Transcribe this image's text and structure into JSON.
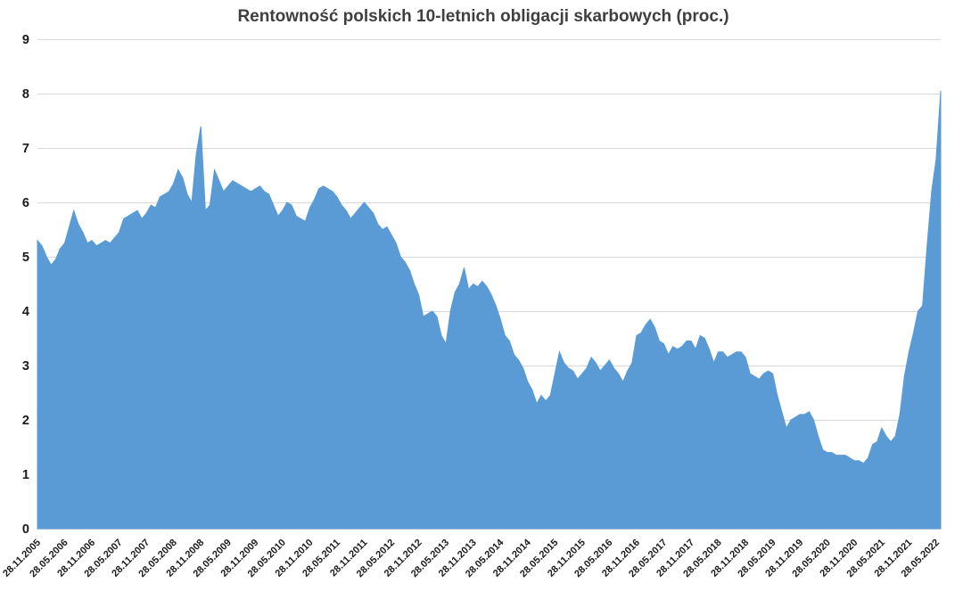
{
  "title": "Rentowność polskich 10-letnich obligacji skarbowych (proc.)",
  "colors": {
    "area": "#5b9bd5",
    "grid": "#d9d9d9",
    "title": "#3f3f3f",
    "tick_label": "#1a1a1a",
    "background": "#ffffff"
  },
  "chart_data": {
    "type": "area",
    "title": "Rentowność polskich 10-letnich obligacji skarbowych (proc.)",
    "xlabel": "",
    "ylabel": "",
    "ylim": [
      0,
      9
    ],
    "y_ticks": [
      0,
      1,
      2,
      3,
      4,
      5,
      6,
      7,
      8,
      9
    ],
    "grid": true,
    "legend": false,
    "x_start": "28.11.2005",
    "x_step_months": 1,
    "x_tick_every": 6,
    "x_tick_labels": [
      "28.11.2005",
      "28.05.2006",
      "28.11.2006",
      "28.05.2007",
      "28.11.2007",
      "28.05.2008",
      "28.11.2008",
      "28.05.2009",
      "28.11.2009",
      "28.05.2010",
      "28.11.2010",
      "28.05.2011",
      "28.11.2011",
      "28.05.2012",
      "28.11.2012",
      "28.05.2013",
      "28.11.2013",
      "28.05.2014",
      "28.11.2014",
      "28.05.2015",
      "28.11.2015",
      "28.05.2016",
      "28.11.2016",
      "28.05.2017",
      "28.11.2017",
      "28.05.2018",
      "28.11.2018",
      "28.05.2019",
      "28.11.2019",
      "28.05.2020",
      "28.11.2020",
      "28.05.2021",
      "28.11.2021",
      "28.05.2022"
    ],
    "values": [
      5.3,
      5.2,
      5.0,
      4.85,
      4.95,
      5.15,
      5.25,
      5.55,
      5.85,
      5.6,
      5.45,
      5.25,
      5.3,
      5.2,
      5.25,
      5.3,
      5.25,
      5.35,
      5.45,
      5.7,
      5.75,
      5.8,
      5.85,
      5.7,
      5.8,
      5.95,
      5.9,
      6.1,
      6.15,
      6.2,
      6.35,
      6.6,
      6.45,
      6.15,
      6.0,
      6.9,
      7.4,
      5.85,
      5.95,
      6.6,
      6.4,
      6.2,
      6.3,
      6.4,
      6.35,
      6.3,
      6.25,
      6.2,
      6.25,
      6.3,
      6.2,
      6.15,
      5.95,
      5.75,
      5.85,
      6.0,
      5.95,
      5.75,
      5.7,
      5.65,
      5.9,
      6.05,
      6.25,
      6.3,
      6.25,
      6.2,
      6.1,
      5.95,
      5.85,
      5.7,
      5.8,
      5.9,
      6.0,
      5.9,
      5.8,
      5.6,
      5.5,
      5.55,
      5.4,
      5.25,
      5.0,
      4.9,
      4.75,
      4.5,
      4.3,
      3.9,
      3.95,
      4.0,
      3.9,
      3.55,
      3.4,
      4.0,
      4.35,
      4.5,
      4.8,
      4.4,
      4.5,
      4.45,
      4.55,
      4.45,
      4.3,
      4.1,
      3.85,
      3.55,
      3.45,
      3.2,
      3.1,
      2.95,
      2.7,
      2.55,
      2.3,
      2.45,
      2.35,
      2.45,
      2.85,
      3.25,
      3.05,
      2.95,
      2.9,
      2.75,
      2.85,
      2.95,
      3.15,
      3.05,
      2.9,
      3.0,
      3.1,
      2.95,
      2.85,
      2.7,
      2.9,
      3.05,
      3.55,
      3.6,
      3.75,
      3.85,
      3.7,
      3.45,
      3.4,
      3.2,
      3.35,
      3.3,
      3.35,
      3.45,
      3.45,
      3.3,
      3.55,
      3.5,
      3.3,
      3.05,
      3.25,
      3.25,
      3.15,
      3.2,
      3.25,
      3.25,
      3.15,
      2.85,
      2.8,
      2.75,
      2.85,
      2.9,
      2.85,
      2.45,
      2.15,
      1.85,
      2.0,
      2.05,
      2.1,
      2.1,
      2.15,
      2.0,
      1.7,
      1.45,
      1.4,
      1.4,
      1.35,
      1.35,
      1.35,
      1.3,
      1.25,
      1.25,
      1.2,
      1.3,
      1.55,
      1.6,
      1.85,
      1.7,
      1.6,
      1.7,
      2.1,
      2.8,
      3.25,
      3.6,
      4.0,
      4.1,
      5.2,
      6.2,
      6.8,
      8.05
    ]
  }
}
